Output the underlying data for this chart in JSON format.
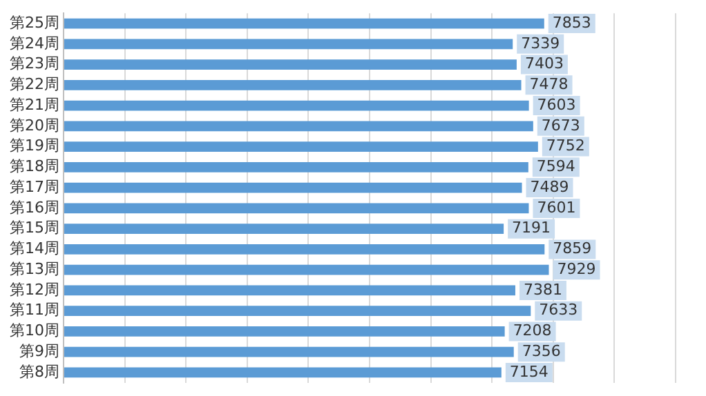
{
  "chart_data": {
    "type": "bar",
    "orientation": "horizontal",
    "categories": [
      "第25周",
      "第24周",
      "第23周",
      "第22周",
      "第21周",
      "第20周",
      "第19周",
      "第18周",
      "第17周",
      "第16周",
      "第15周",
      "第14周",
      "第13周",
      "第12周",
      "第11周",
      "第10周",
      "第9周",
      "第8周"
    ],
    "values": [
      7853,
      7339,
      7403,
      7478,
      7603,
      7673,
      7752,
      7594,
      7489,
      7601,
      7191,
      7859,
      7929,
      7381,
      7633,
      7208,
      7356,
      7154
    ],
    "color": "#5b9bd5",
    "xlim": [
      0,
      10000
    ],
    "xticks": [
      {
        "value": 0,
        "label": null
      },
      {
        "value": 1000,
        "label": null
      },
      {
        "value": 2000,
        "label": null
      },
      {
        "value": 3000,
        "label": null
      },
      {
        "value": 4000,
        "label": null
      },
      {
        "value": 5000,
        "label": null
      },
      {
        "value": 6000,
        "label": null
      },
      {
        "value": 7000,
        "label": null
      },
      {
        "value": 8000,
        "label": null
      },
      {
        "value": 9000,
        "label": null
      },
      {
        "value": 10000,
        "label": null
      }
    ],
    "grid": "x",
    "tick_labels": "y",
    "data_labels": true,
    "legend": false
  }
}
